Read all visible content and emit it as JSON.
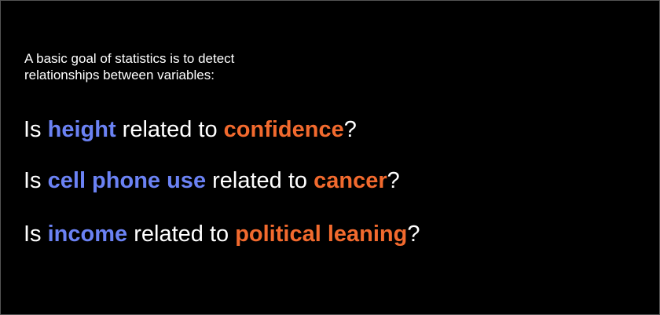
{
  "colors": {
    "background": "#000000",
    "text": "#ffffff",
    "variable_a": "#6b82f4",
    "variable_b": "#f26a2e"
  },
  "intro": {
    "line1": "A basic goal of statistics is to detect",
    "line2": "relationships between variables:"
  },
  "questions": [
    {
      "prefix": "Is ",
      "variable_a": "height",
      "middle": " related to ",
      "variable_b": "confidence",
      "suffix": "?"
    },
    {
      "prefix": "Is ",
      "variable_a": "cell phone use",
      "middle": " related to ",
      "variable_b": "cancer",
      "suffix": "?"
    },
    {
      "prefix": "Is ",
      "variable_a": "income",
      "middle": " related to ",
      "variable_b": "political leaning",
      "suffix": "?"
    }
  ]
}
